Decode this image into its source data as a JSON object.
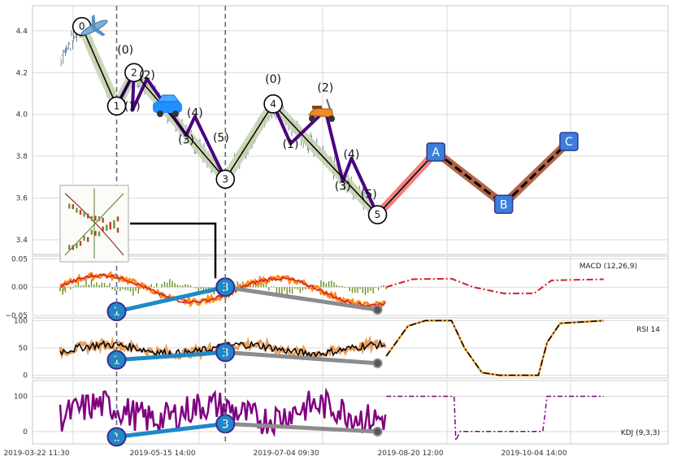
{
  "chart_data": [
    {
      "type": "line",
      "panel": "price",
      "ylim": [
        3.33,
        4.52
      ],
      "yticks": [
        3.4,
        3.6,
        3.8,
        4.0,
        4.2,
        4.4
      ],
      "ytick_labels": [
        "3.4",
        "3.6",
        "3.8",
        "4.0",
        "4.2",
        "4.4"
      ],
      "x_dates": [
        "2019-03-22 11:30",
        "2019-05-15 14:00",
        "2019-07-04 09:30",
        "2019-08-20 12:00",
        "2019-10-04 14:00"
      ],
      "wave_points": [
        {
          "label": "0",
          "x": 0.1,
          "y": 4.42
        },
        {
          "label": "1",
          "x": 0.5,
          "y": 4.04
        },
        {
          "label": "2",
          "x": 0.7,
          "y": 4.2
        },
        {
          "label": "3",
          "x": 1.75,
          "y": 3.69
        },
        {
          "label": "4",
          "x": 2.3,
          "y": 4.05
        },
        {
          "label": "5",
          "x": 3.5,
          "y": 3.52
        }
      ],
      "sub_wave_labels": [
        {
          "label": "(0)",
          "x": 0.6,
          "y": 4.29
        },
        {
          "label": "(1)",
          "x": 0.68,
          "y": 4.02
        },
        {
          "label": "(2)",
          "x": 0.85,
          "y": 4.17
        },
        {
          "label": "(3)",
          "x": 1.3,
          "y": 3.86
        },
        {
          "label": "(4)",
          "x": 1.4,
          "y": 3.99
        },
        {
          "label": "(5)",
          "x": 1.7,
          "y": 3.87
        },
        {
          "label": "(0)",
          "x": 2.3,
          "y": 4.15
        },
        {
          "label": "(1)",
          "x": 2.5,
          "y": 3.84
        },
        {
          "label": "(2)",
          "x": 2.9,
          "y": 4.11
        },
        {
          "label": "(3)",
          "x": 3.1,
          "y": 3.64
        },
        {
          "label": "(4)",
          "x": 3.2,
          "y": 3.79
        },
        {
          "label": "(5)",
          "x": 3.4,
          "y": 3.6
        }
      ],
      "forecast": [
        {
          "label": "A",
          "x": 4.17,
          "y": 3.82
        },
        {
          "label": "B",
          "x": 4.95,
          "y": 3.57
        },
        {
          "label": "C",
          "x": 5.7,
          "y": 3.87
        }
      ],
      "vlines_x": [
        0.5,
        1.75
      ]
    },
    {
      "type": "line",
      "panel": "macd",
      "label": "MACD (12,26,9)",
      "ylim": [
        -0.05,
        0.055
      ],
      "yticks": [
        0.05,
        0.0,
        -0.05
      ],
      "ytick_labels": [
        "0.05",
        "0.00",
        "−0.05"
      ],
      "divergence": [
        {
          "label": "1",
          "x": 0.5,
          "y": -0.043
        },
        {
          "label": "3",
          "x": 1.75,
          "y": 0.0
        }
      ]
    },
    {
      "type": "line",
      "panel": "rsi",
      "label": "RSI 14",
      "ylim": [
        -5,
        105
      ],
      "yticks": [
        100,
        50,
        0
      ],
      "ytick_labels": [
        "100",
        "50",
        "0"
      ],
      "divergence": [
        {
          "label": "1",
          "x": 0.5,
          "y": 28
        },
        {
          "label": "3",
          "x": 1.75,
          "y": 42
        }
      ]
    },
    {
      "type": "line",
      "panel": "kdj",
      "label": "KDJ (9,3,3)",
      "ylim": [
        -35,
        145
      ],
      "yticks": [
        100,
        0
      ],
      "ytick_labels": [
        "100",
        "0"
      ],
      "divergence": [
        {
          "label": "1",
          "x": 0.5,
          "y": -15
        },
        {
          "label": "3",
          "x": 1.75,
          "y": 22
        }
      ]
    }
  ],
  "icons": [
    "airplane-icon",
    "car-icon",
    "scooter-icon",
    "thumbnail-chart-icon"
  ],
  "colors": {
    "wave_main": "#000000",
    "wave_purple": "#4b0082",
    "wave_shadow": "#c8d4b0",
    "price_line": "#4a6c8c",
    "forecast_pink": "#f08080",
    "forecast_brown": "#b46446",
    "macd_orange": "#ff8c1a",
    "macd_red": "#d02030",
    "kdj_purple": "#800080",
    "divergence_blue": "#1e88c8",
    "divergence_grey": "#8c8c8c",
    "forecast_box": "#3d7ddb"
  }
}
